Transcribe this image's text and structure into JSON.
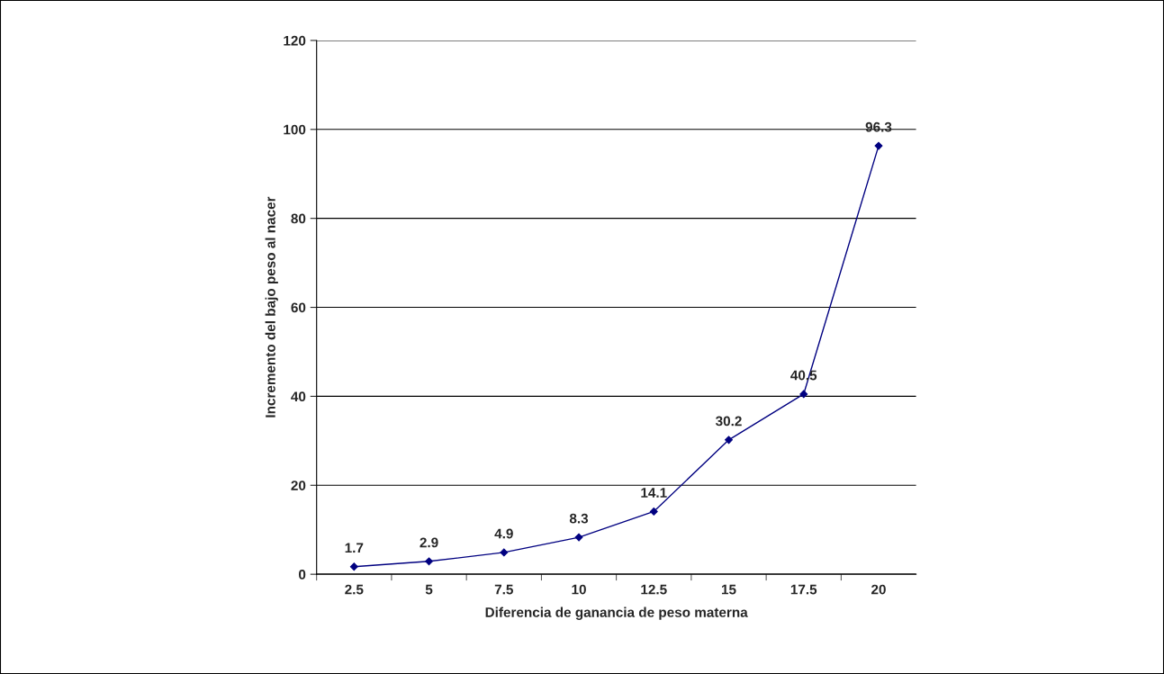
{
  "chart_data": {
    "type": "line",
    "xlabel": "Diferencia de ganancia de peso materna",
    "ylabel": "Incremento del bajo peso al nacer",
    "categories": [
      "2.5",
      "5",
      "7.5",
      "10",
      "12.5",
      "15",
      "17.5",
      "20"
    ],
    "series": [
      {
        "color": "#000080",
        "values": [
          1.7,
          2.9,
          4.9,
          8.3,
          14.1,
          30.2,
          40.5,
          96.3
        ]
      }
    ],
    "ylim": [
      0,
      120
    ],
    "yticks": [
      0,
      20,
      40,
      60,
      80,
      100,
      120
    ],
    "grid": "y",
    "marker": "diamond",
    "line_style": "solid",
    "data_labels": true,
    "legend": false
  }
}
